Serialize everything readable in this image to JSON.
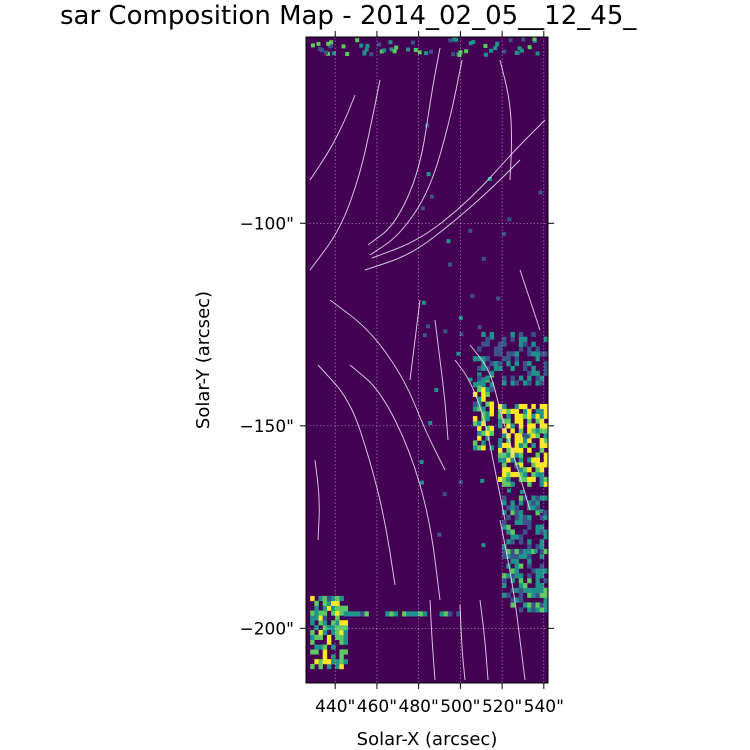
{
  "chart_data": {
    "type": "heatmap",
    "title": "sar Composition Map - 2014_02_05__12_45_",
    "xlabel": "Solar-X (arcsec)",
    "ylabel": "Solar-Y (arcsec)",
    "xlim": [
      426,
      542
    ],
    "ylim": [
      -213.5,
      -54
    ],
    "x_ticks": [
      440,
      460,
      480,
      500,
      520,
      540
    ],
    "x_tick_labels": [
      "440\"",
      "460\"",
      "480\"",
      "500\"",
      "520\"",
      "540\""
    ],
    "y_ticks": [
      -100,
      -150,
      -200
    ],
    "y_tick_labels": [
      "−100\"",
      "−150\"",
      "−200\""
    ],
    "grid": true,
    "colormap": "viridis",
    "colors": {
      "background": "#440154",
      "low": "#3b528b",
      "mid": "#21918c",
      "high": "#5ec962",
      "max": "#fde725",
      "contour": "#e6d9ef"
    },
    "hot_regions": [
      {
        "x": [
          428,
          446
        ],
        "y": [
          -193,
          -210
        ],
        "intensity": 0.8
      },
      {
        "x": [
          506,
          516
        ],
        "y": [
          -138,
          -156
        ],
        "intensity": 0.75
      },
      {
        "x": [
          518,
          542
        ],
        "y": [
          -145,
          -165
        ],
        "intensity": 1.0
      },
      {
        "x": [
          520,
          542
        ],
        "y": [
          -168,
          -196
        ],
        "intensity": 0.45
      },
      {
        "x": [
          506,
          542
        ],
        "y": [
          -128,
          -140
        ],
        "intensity": 0.35
      },
      {
        "x": [
          440,
          500
        ],
        "y": [
          -196,
          -197
        ],
        "intensity": 0.55
      }
    ]
  }
}
